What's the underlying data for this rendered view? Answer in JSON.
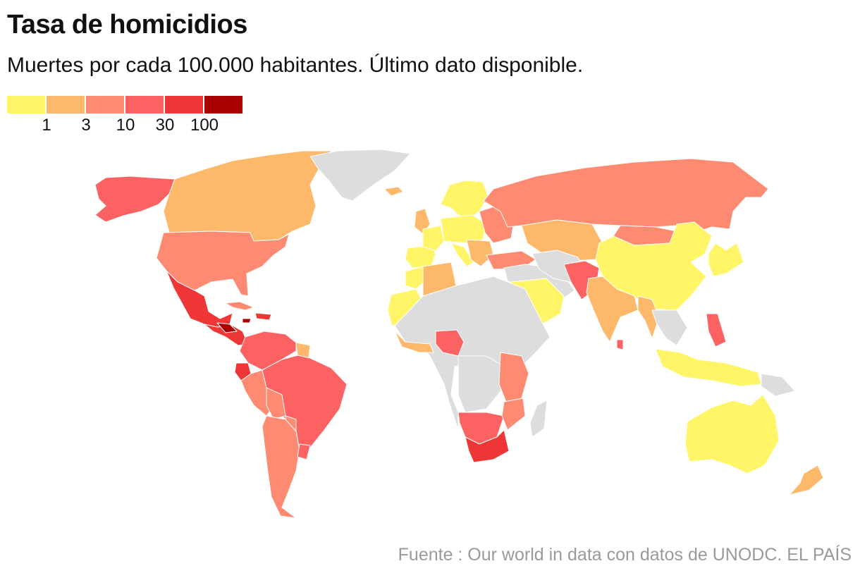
{
  "header": {
    "title": "Tasa de homicidios",
    "subtitle": "Muertes por cada 100.000 habitantes. Último dato disponible."
  },
  "legend": {
    "colors": [
      "#fff566",
      "#feb86a",
      "#fd8a71",
      "#fd6262",
      "#ef3636",
      "#a80000"
    ],
    "labels": [
      "1",
      "3",
      "10",
      "30",
      "100"
    ]
  },
  "colors": {
    "no_data": "#dddddd",
    "border": "#ffffff"
  },
  "regions": {
    "north_america": {
      "alaska": 3,
      "canada": 1,
      "greenland": -1,
      "usa": 2,
      "mexico": 4,
      "central_america": 4,
      "honduras": 5,
      "cuba": 2,
      "haiti_dr": 4,
      "jamaica": 5
    },
    "south_america": {
      "venezuela_colombia": 3,
      "guyanas": 1,
      "ecuador": 4,
      "peru": 2,
      "brazil": 3,
      "bolivia": 2,
      "paraguay": 2,
      "argentina_chile": 2,
      "uruguay": 3
    },
    "europe": {
      "iceland": 1,
      "scandinavia": 0,
      "uk_ireland": 1,
      "iberia": 0,
      "france": 0,
      "central_europe": 0,
      "italy": 0,
      "balkans": 1,
      "eastern_europe": 2,
      "turkey": 2
    },
    "asia": {
      "russia": 2,
      "kazakhstan_central": 1,
      "mongolia": 2,
      "china": 0,
      "korea_japan": 0,
      "middle_east": -1,
      "saudi_peninsula": 0,
      "iran_caucasus": -1,
      "afghanistan_pakistan": 3,
      "india": 1,
      "myanmar": 1,
      "southeast_asia": -1,
      "philippines": 3,
      "indonesia": 0,
      "papua": -1,
      "sri_lanka": 3
    },
    "africa": {
      "morocco": 0,
      "algeria": 1,
      "sahara_west": 0,
      "sahel_central": -1,
      "west_coast": 1,
      "nigeria": 3,
      "central_africa": -1,
      "east_africa": 2,
      "namibia_botswana": 3,
      "south_africa": 4,
      "mozambique": 2,
      "madagascar": -1
    },
    "oceania": {
      "australia": 0,
      "new_zealand": 1
    }
  },
  "source": "Fuente : Our world in data con datos de UNODC. EL PAÍS"
}
